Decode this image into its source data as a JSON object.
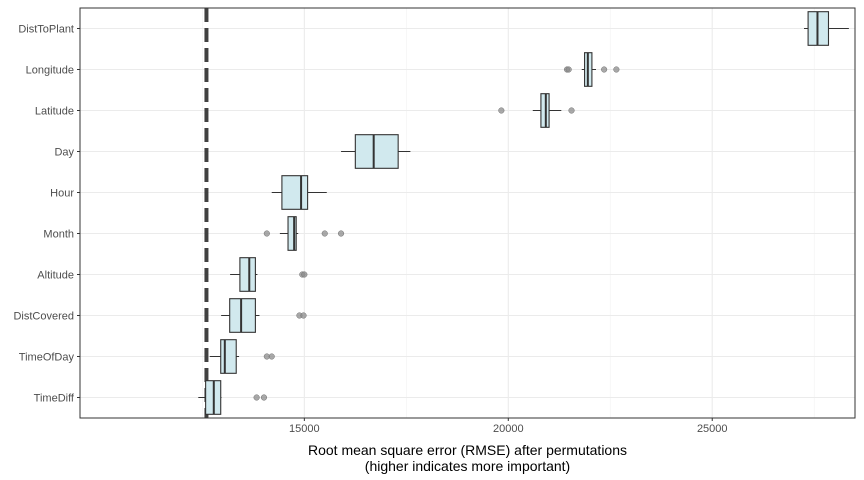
{
  "chart_data": {
    "type": "boxplot",
    "orientation": "horizontal",
    "xlabel_line1": "Root mean square error (RMSE) after permutations",
    "xlabel_line2": "(higher indicates more important)",
    "ylabel": "",
    "xlim": [
      9500,
      28500
    ],
    "x_ticks": [
      15000,
      20000,
      25000
    ],
    "x_tick_labels": [
      "15000",
      "20000",
      "25000"
    ],
    "baseline_rmse": 12600,
    "grid": true,
    "colors": {
      "box_fill": "#d1e9ee",
      "box_stroke": "#333333",
      "baseline": "#404040",
      "outlier": "#8c8c8c",
      "grid": "#ebebeb",
      "panel_border": "#333333"
    },
    "series": [
      {
        "label": "DistToPlant",
        "whisker_low": 27250,
        "q1": 27350,
        "median": 27580,
        "q3": 27850,
        "whisker_high": 28350,
        "outliers": []
      },
      {
        "label": "Longitude",
        "whisker_low": 21800,
        "q1": 21870,
        "median": 21950,
        "q3": 22050,
        "whisker_high": 22150,
        "outliers": [
          21440,
          21480,
          22350,
          22650
        ]
      },
      {
        "label": "Latitude",
        "whisker_low": 20600,
        "q1": 20800,
        "median": 20920,
        "q3": 21000,
        "whisker_high": 21300,
        "outliers": [
          19830,
          21550
        ]
      },
      {
        "label": "Day",
        "whisker_low": 15900,
        "q1": 16250,
        "median": 16700,
        "q3": 17300,
        "whisker_high": 17600,
        "outliers": []
      },
      {
        "label": "Hour",
        "whisker_low": 14200,
        "q1": 14450,
        "median": 14920,
        "q3": 15080,
        "whisker_high": 15550,
        "outliers": []
      },
      {
        "label": "Month",
        "whisker_low": 14400,
        "q1": 14600,
        "median": 14750,
        "q3": 14800,
        "whisker_high": 14850,
        "outliers": [
          14080,
          15500,
          15900
        ]
      },
      {
        "label": "Altitude",
        "whisker_low": 13180,
        "q1": 13420,
        "median": 13650,
        "q3": 13800,
        "whisker_high": 13850,
        "outliers": [
          14950,
          15000
        ]
      },
      {
        "label": "DistCovered",
        "whisker_low": 12960,
        "q1": 13170,
        "median": 13450,
        "q3": 13800,
        "whisker_high": 13900,
        "outliers": [
          14880,
          14980
        ]
      },
      {
        "label": "TimeOfDay",
        "whisker_low": 12680,
        "q1": 12950,
        "median": 13050,
        "q3": 13330,
        "whisker_high": 13400,
        "outliers": [
          14080,
          14200
        ]
      },
      {
        "label": "TimeDiff",
        "whisker_low": 12400,
        "q1": 12580,
        "median": 12780,
        "q3": 12950,
        "whisker_high": 12970,
        "outliers": [
          13830,
          14010
        ]
      }
    ]
  }
}
